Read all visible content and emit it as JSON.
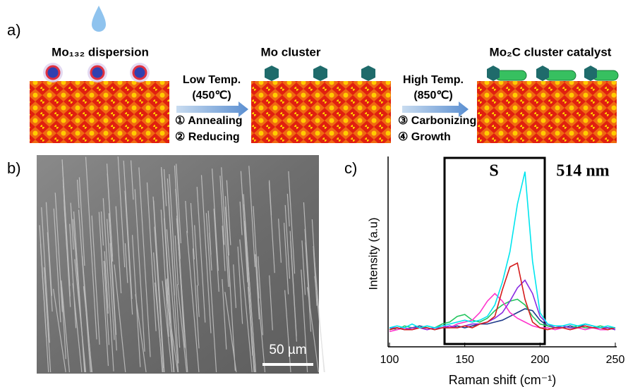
{
  "panel_a": {
    "label": "a)",
    "stage1": "Mo₁₃₂ dispersion",
    "step1": {
      "condition": "Low Temp.",
      "temperature": "(450℃)",
      "actions": [
        "① Annealing",
        "② Reducing"
      ]
    },
    "stage2": "Mo cluster",
    "step2": {
      "condition": "High Temp.",
      "temperature": "(850℃)",
      "actions": [
        "③ Carbonizing",
        "④ Growth"
      ]
    },
    "stage3": "Mo₂C cluster catalyst"
  },
  "panel_b": {
    "label": "b)",
    "scale_bar": "50 µm"
  },
  "chart_data": {
    "type": "line",
    "panel_label": "c)",
    "xlabel": "Raman shift (cm⁻¹)",
    "ylabel": "Intensity (a.u)",
    "annotations": [
      "S",
      "514 nm"
    ],
    "x": [
      100,
      105,
      110,
      115,
      120,
      125,
      130,
      135,
      140,
      145,
      150,
      155,
      160,
      165,
      170,
      175,
      180,
      185,
      190,
      195,
      200,
      205,
      210,
      215,
      220,
      225,
      230,
      235,
      240,
      245,
      250
    ],
    "xlim": [
      100,
      250
    ],
    "xticks": [
      100,
      150,
      200,
      250
    ],
    "ylim": [
      0,
      1
    ],
    "series": [
      {
        "color": "#1e3a8a",
        "values": [
          0.09,
          0.1,
          0.09,
          0.1,
          0.11,
          0.1,
          0.09,
          0.1,
          0.1,
          0.11,
          0.1,
          0.11,
          0.12,
          0.12,
          0.13,
          0.14,
          0.16,
          0.18,
          0.2,
          0.19,
          0.14,
          0.11,
          0.1,
          0.1,
          0.11,
          0.1,
          0.12,
          0.11,
          0.1,
          0.1,
          0.09
        ]
      },
      {
        "color": "#22c55e",
        "values": [
          0.1,
          0.09,
          0.11,
          0.1,
          0.1,
          0.11,
          0.1,
          0.12,
          0.13,
          0.16,
          0.17,
          0.14,
          0.13,
          0.15,
          0.19,
          0.22,
          0.24,
          0.25,
          0.22,
          0.16,
          0.12,
          0.11,
          0.1,
          0.11,
          0.1,
          0.11,
          0.1,
          0.1,
          0.11,
          0.1,
          0.1
        ]
      },
      {
        "color": "#ff33cc",
        "values": [
          0.08,
          0.09,
          0.1,
          0.09,
          0.1,
          0.09,
          0.1,
          0.11,
          0.1,
          0.12,
          0.13,
          0.14,
          0.18,
          0.24,
          0.28,
          0.24,
          0.18,
          0.15,
          0.13,
          0.11,
          0.1,
          0.1,
          0.09,
          0.1,
          0.09,
          0.1,
          0.09,
          0.1,
          0.09,
          0.09,
          0.1
        ]
      },
      {
        "color": "#8a2be2",
        "values": [
          0.1,
          0.1,
          0.09,
          0.1,
          0.1,
          0.09,
          0.1,
          0.1,
          0.11,
          0.1,
          0.11,
          0.12,
          0.12,
          0.13,
          0.15,
          0.18,
          0.24,
          0.31,
          0.35,
          0.28,
          0.16,
          0.12,
          0.1,
          0.11,
          0.1,
          0.1,
          0.11,
          0.1,
          0.1,
          0.1,
          0.09
        ]
      },
      {
        "color": "#d41c1c",
        "values": [
          0.09,
          0.1,
          0.09,
          0.09,
          0.1,
          0.1,
          0.09,
          0.1,
          0.1,
          0.1,
          0.11,
          0.1,
          0.12,
          0.13,
          0.16,
          0.3,
          0.42,
          0.44,
          0.25,
          0.13,
          0.1,
          0.09,
          0.1,
          0.1,
          0.09,
          0.1,
          0.11,
          0.1,
          0.1,
          0.09,
          0.1
        ]
      },
      {
        "color": "#00e5ee",
        "values": [
          0.1,
          0.11,
          0.1,
          0.12,
          0.1,
          0.11,
          0.1,
          0.11,
          0.12,
          0.13,
          0.14,
          0.13,
          0.14,
          0.16,
          0.22,
          0.34,
          0.5,
          0.75,
          0.92,
          0.45,
          0.18,
          0.12,
          0.11,
          0.11,
          0.12,
          0.11,
          0.12,
          0.11,
          0.1,
          0.11,
          0.1
        ]
      }
    ]
  }
}
